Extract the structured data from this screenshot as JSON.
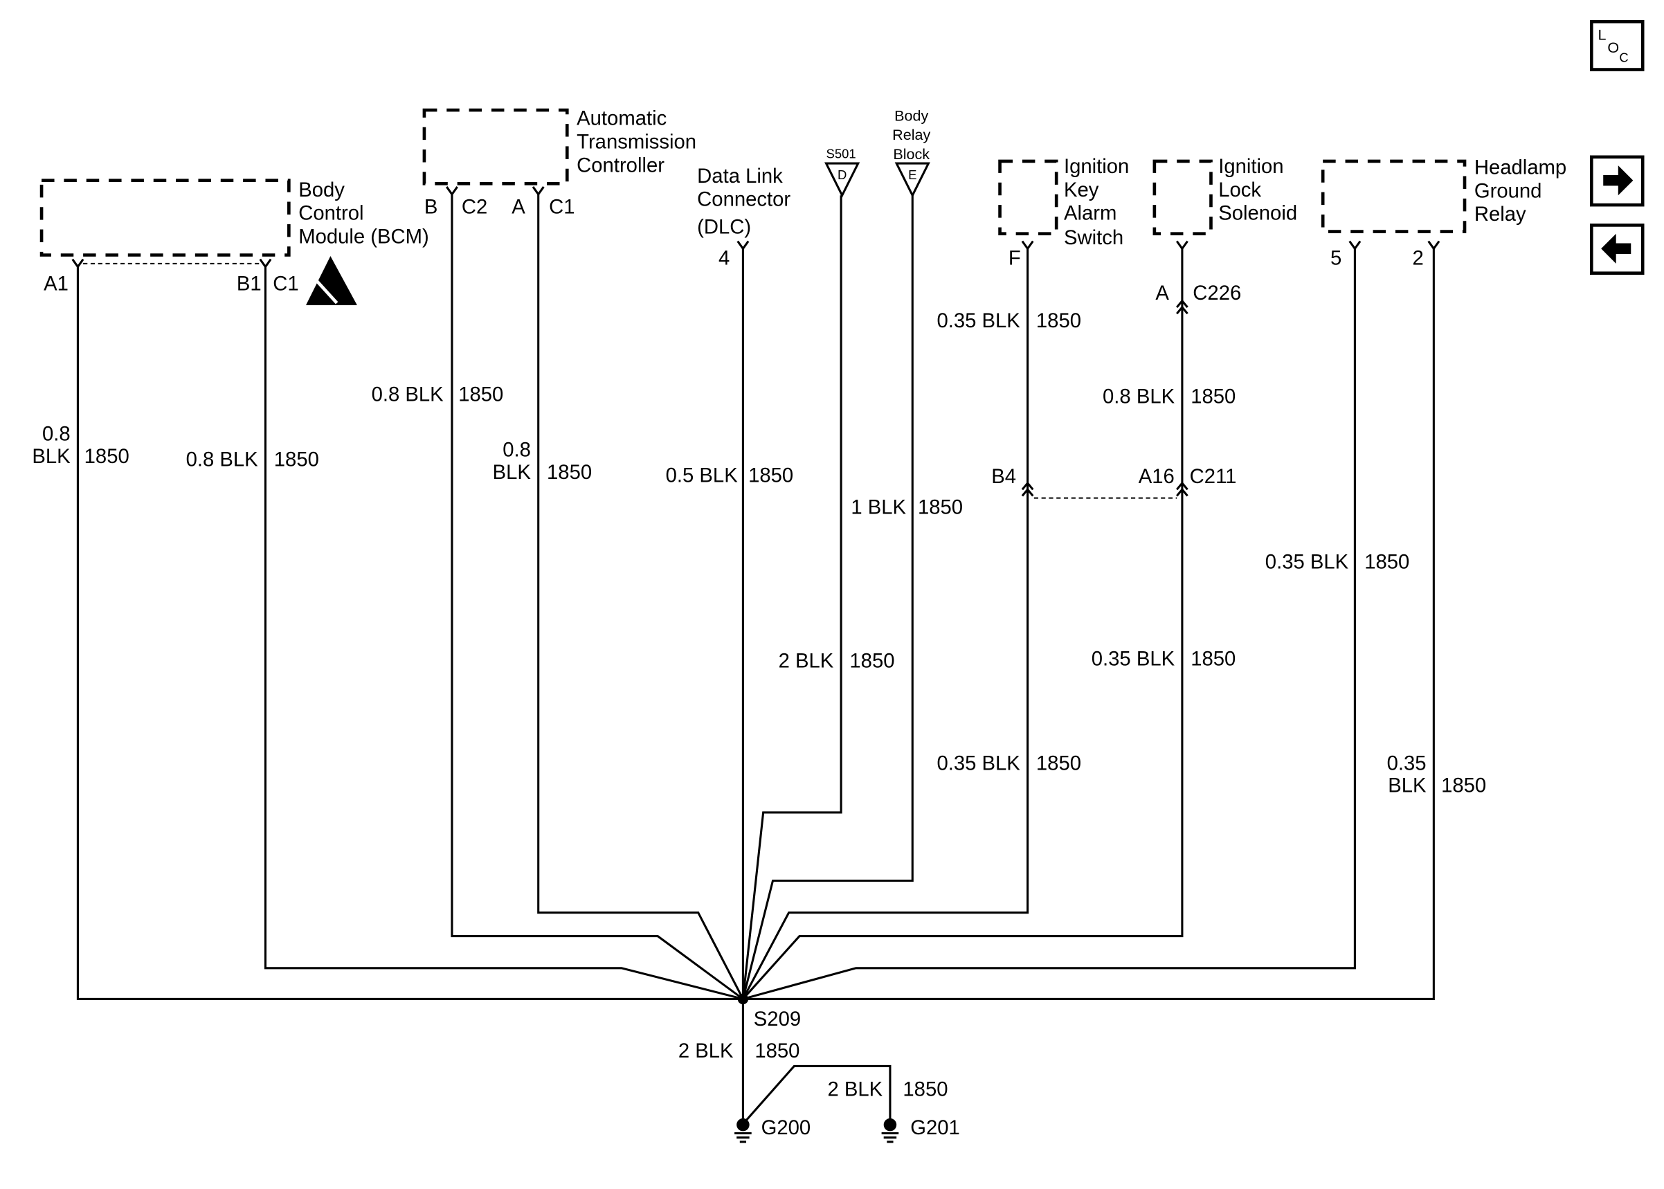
{
  "nav": {
    "loc_button": {
      "label": [
        "L",
        "O",
        "C"
      ],
      "icon": "location-icon"
    },
    "next_button": {
      "icon": "arrow-right-icon"
    },
    "prev_button": {
      "icon": "arrow-left-icon"
    }
  },
  "components": {
    "bcm": {
      "name": [
        "Body",
        "Control",
        "Module (BCM)"
      ],
      "pins": [
        "A1",
        "B1",
        "C1"
      ],
      "esd_icon": "esd-sensitive-icon"
    },
    "atc": {
      "name": [
        "Automatic",
        "Transmission",
        "Controller"
      ],
      "pins": [
        "B",
        "C2",
        "A",
        "C1"
      ]
    },
    "dlc": {
      "name": [
        "Data Link",
        "Connector",
        "(DLC)"
      ],
      "pin": "4"
    },
    "s501": {
      "name": "S501",
      "pin": "D"
    },
    "body_relay_block": {
      "name": [
        "Body",
        "Relay",
        "Block"
      ],
      "pin": "E"
    },
    "ign_key_alarm": {
      "name": [
        "Ignition",
        "Key",
        "Alarm",
        "Switch"
      ],
      "pin": "F"
    },
    "ign_lock_solenoid": {
      "name": [
        "Ignition",
        "Lock",
        "Solenoid"
      ]
    },
    "headlamp_ground_relay": {
      "name": [
        "Headlamp",
        "Ground",
        "Relay"
      ],
      "pins": [
        "5",
        "2"
      ]
    }
  },
  "connectors": {
    "c226": {
      "name": "C226",
      "pin": "A"
    },
    "c211": {
      "name": "C211",
      "pins": [
        "B4",
        "A16"
      ]
    }
  },
  "splice": {
    "name": "S209"
  },
  "grounds": [
    "G200",
    "G201"
  ],
  "wires": {
    "bcm_a1": {
      "gauge": [
        "0.8",
        "BLK"
      ],
      "circuit": "1850"
    },
    "bcm_b1": {
      "gauge": "0.8 BLK",
      "circuit": "1850"
    },
    "atc_b": {
      "gauge": "0.8 BLK",
      "circuit": "1850"
    },
    "atc_a": {
      "gauge": [
        "0.8",
        "BLK"
      ],
      "circuit": "1850"
    },
    "dlc": {
      "gauge": "0.5 BLK",
      "circuit": "1850"
    },
    "s501": {
      "gauge": "2 BLK",
      "circuit": "1850"
    },
    "brb": {
      "gauge": "1 BLK",
      "circuit": "1850"
    },
    "ign_key_upper": {
      "gauge": "0.35 BLK",
      "circuit": "1850"
    },
    "ign_key_lower": {
      "gauge": "0.35 BLK",
      "circuit": "1850"
    },
    "ign_lock_upper": {
      "gauge": "0.8 BLK",
      "circuit": "1850"
    },
    "ign_lock_lower": {
      "gauge": "0.35 BLK",
      "circuit": "1850"
    },
    "hgr_5": {
      "gauge": "0.35 BLK",
      "circuit": "1850"
    },
    "hgr_2": {
      "gauge": [
        "0.35",
        "BLK"
      ],
      "circuit": "1850"
    },
    "g200": {
      "gauge": "2 BLK",
      "circuit": "1850"
    },
    "g201": {
      "gauge": "2 BLK",
      "circuit": "1850"
    }
  }
}
